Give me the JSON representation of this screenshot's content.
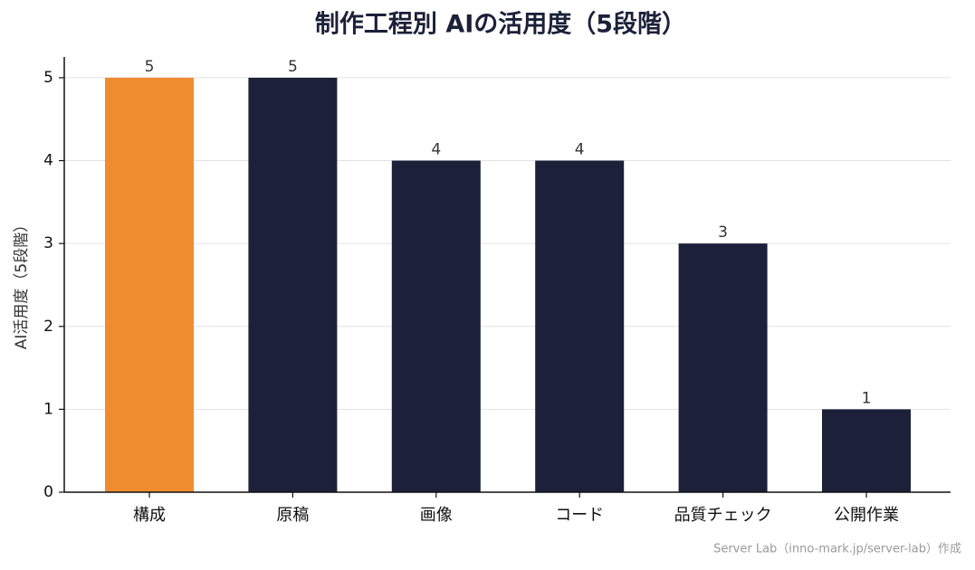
{
  "chart_data": {
    "type": "bar",
    "title": "制作工程別 AIの活用度（5段階）",
    "y_label": "AI活用度（5段階）",
    "categories": [
      "構成",
      "原稿",
      "画像",
      "コード",
      "品質チェック",
      "公開作業"
    ],
    "values": [
      5,
      5,
      4,
      4,
      3,
      1
    ],
    "colors": [
      "#f08c30",
      "#1c2139",
      "#1c2139",
      "#1c2139",
      "#1c2139",
      "#1c2139"
    ],
    "ylim": [
      0,
      5.25
    ],
    "yticks": [
      0,
      1,
      2,
      3,
      4,
      5
    ],
    "grid": true,
    "source": "Server Lab（inno-mark.jp/server-lab）作成"
  }
}
